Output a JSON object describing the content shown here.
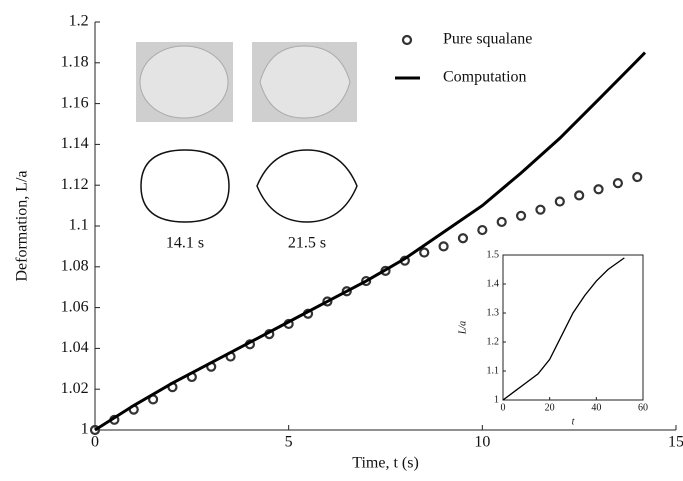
{
  "chart_data": [
    {
      "type": "line",
      "xlabel": "Time, t (s)",
      "ylabel": "Deformation, L/a",
      "xlim": [
        0,
        15
      ],
      "xticks": [
        0,
        5,
        10,
        15
      ],
      "ylim": [
        1,
        1.2
      ],
      "yticks": [
        1,
        1.02,
        1.04,
        1.06,
        1.08,
        1.1,
        1.12,
        1.14,
        1.16,
        1.18,
        1.2
      ],
      "legend": "top-right",
      "annotations": [
        "14.1 s",
        "21.5 s"
      ],
      "series": [
        {
          "name": "Pure squalane",
          "style": "markers",
          "color": "#333333",
          "x": [
            0,
            0.5,
            1,
            1.5,
            2,
            2.5,
            3,
            3.5,
            4,
            4.5,
            5,
            5.5,
            6,
            6.5,
            7,
            7.5,
            8,
            8.5,
            9,
            9.5,
            10,
            10.5,
            11,
            11.5,
            12,
            12.5,
            13,
            13.5,
            14
          ],
          "values": [
            1.0,
            1.005,
            1.01,
            1.015,
            1.021,
            1.026,
            1.031,
            1.036,
            1.042,
            1.047,
            1.052,
            1.057,
            1.063,
            1.068,
            1.073,
            1.078,
            1.083,
            1.087,
            1.09,
            1.094,
            1.098,
            1.102,
            1.105,
            1.108,
            1.112,
            1.115,
            1.118,
            1.121,
            1.124
          ]
        },
        {
          "name": "Computation",
          "style": "line",
          "color": "#000000",
          "x": [
            0,
            1,
            2,
            3,
            4,
            5,
            6,
            7,
            8,
            9,
            10,
            11,
            12,
            13,
            14.2
          ],
          "values": [
            1.0,
            1.012,
            1.023,
            1.033,
            1.043,
            1.053,
            1.063,
            1.073,
            1.084,
            1.097,
            1.11,
            1.126,
            1.143,
            1.162,
            1.185
          ]
        }
      ]
    },
    {
      "type": "line",
      "xlabel": "t",
      "ylabel": "L/a",
      "xlim": [
        0,
        60
      ],
      "xticks": [
        0,
        20,
        40,
        60
      ],
      "ylim": [
        1,
        1.5
      ],
      "yticks": [
        1,
        1.1,
        1.2,
        1.3,
        1.4,
        1.5
      ],
      "series": [
        {
          "style": "line",
          "color": "#000000",
          "x": [
            0,
            5,
            10,
            15,
            20,
            25,
            30,
            35,
            40,
            45,
            52
          ],
          "values": [
            1.0,
            1.03,
            1.06,
            1.09,
            1.14,
            1.22,
            1.3,
            1.36,
            1.41,
            1.45,
            1.49
          ]
        }
      ]
    }
  ]
}
